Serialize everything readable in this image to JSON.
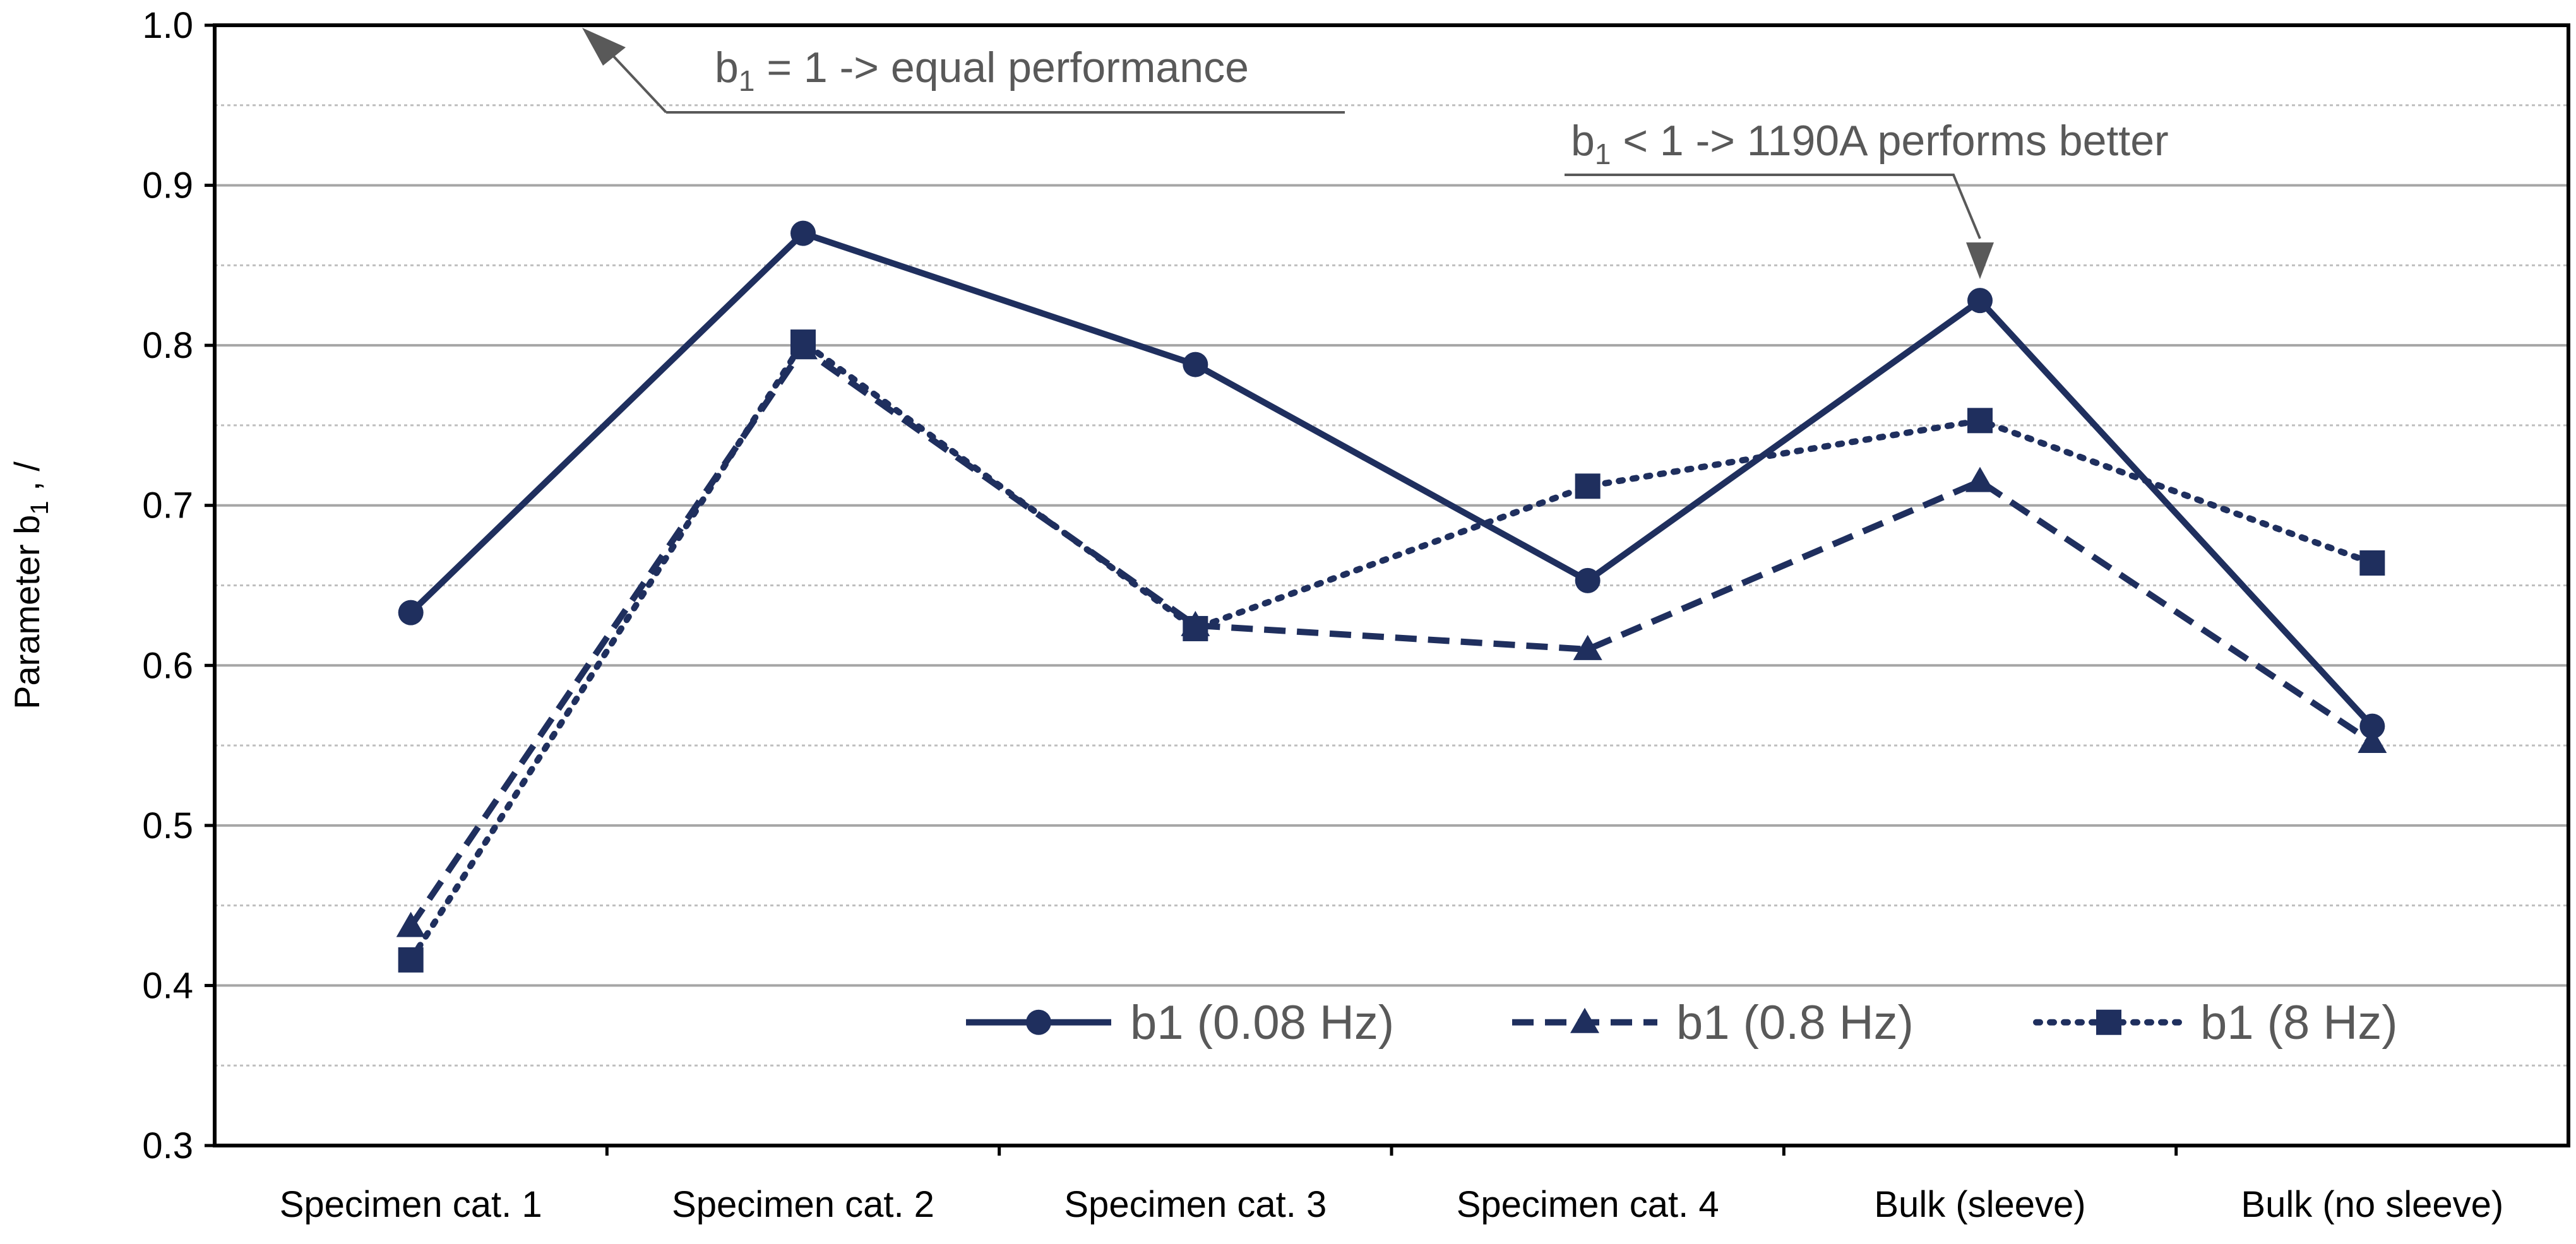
{
  "chart_data": {
    "type": "line",
    "title": "",
    "xlabel": "",
    "ylabel_main": "Parameter b",
    "ylabel_sub": "1",
    "ylabel_suffix": " , /",
    "ylim": [
      0.3,
      1.0
    ],
    "yticks": [
      "0.3",
      "0.4",
      "0.5",
      "0.6",
      "0.7",
      "0.8",
      "0.9",
      "1.0"
    ],
    "grid": true,
    "categories": [
      "Specimen cat. 1",
      "Specimen cat. 2",
      "Specimen cat. 3",
      "Specimen cat. 4",
      "Bulk (sleeve)",
      "Bulk (no sleeve)"
    ],
    "series": [
      {
        "name": "b1 (0.08 Hz)",
        "marker": "circle",
        "dash": "solid",
        "values": [
          0.633,
          0.87,
          0.788,
          0.653,
          0.828,
          0.562
        ]
      },
      {
        "name": "b1 (0.8 Hz)",
        "marker": "triangle",
        "dash": "dashed",
        "values": [
          0.437,
          0.798,
          0.625,
          0.61,
          0.715,
          0.552
        ]
      },
      {
        "name": "b1 (8 Hz)",
        "marker": "square",
        "dash": "dotted",
        "values": [
          0.416,
          0.802,
          0.623,
          0.712,
          0.753,
          0.664
        ]
      }
    ],
    "legend_position": "bottom-right",
    "annotations": [
      {
        "base": "b",
        "sub": "1",
        "rest": " = 1 -> equal performance"
      },
      {
        "base": "b",
        "sub": "1",
        "rest": " < 1 -> 1190A performs better"
      }
    ]
  },
  "colors": {
    "series": "#1f2f5e",
    "axis": "#000000",
    "grid_major": "#a6a6a6",
    "grid_minor": "#bfbfbf",
    "annotation": "#595959",
    "legend_text": "#595959"
  }
}
